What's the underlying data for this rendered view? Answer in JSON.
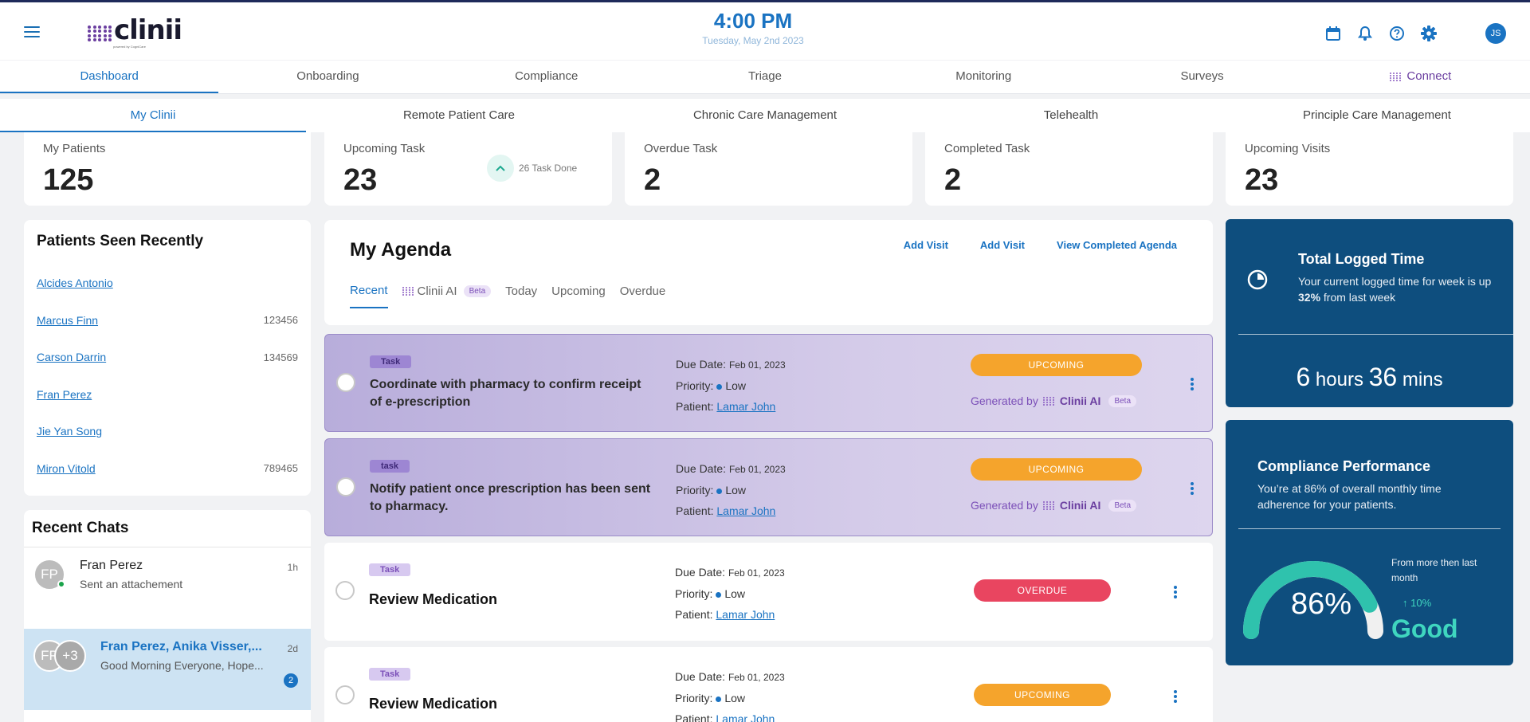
{
  "header": {
    "logo_text": "clinii",
    "logo_sub": "powered by CogniCare",
    "time": "4:00 PM",
    "date": "Tuesday, May 2nd 2023",
    "user_initials": "JS",
    "icons": [
      "calendar-icon",
      "bell-icon",
      "help-icon",
      "gear-icon"
    ]
  },
  "main_nav": [
    "Dashboard",
    "Onboarding",
    "Compliance",
    "Triage",
    "Monitoring",
    "Surveys",
    "Connect"
  ],
  "sub_nav": [
    "My Clinii",
    "Remote Patient Care",
    "Chronic Care Management",
    "Telehealth",
    "Principle Care Management"
  ],
  "stats": {
    "patients": {
      "label": "My Patients",
      "value": "125"
    },
    "upcoming": {
      "label": "Upcoming Task",
      "value": "23",
      "done": "26 Task Done"
    },
    "overdue": {
      "label": "Overdue Task",
      "value": "2"
    },
    "completed": {
      "label": "Completed Task",
      "value": "2"
    },
    "visits": {
      "label": "Upcoming Visits",
      "value": "23"
    }
  },
  "patients_seen": {
    "title": "Patients Seen Recently",
    "rows": [
      {
        "name": "Alcides Antonio",
        "id": ""
      },
      {
        "name": "Marcus Finn",
        "id": "123456"
      },
      {
        "name": "Carson Darrin",
        "id": "134569"
      },
      {
        "name": "Fran Perez",
        "id": ""
      },
      {
        "name": "Jie Yan Song",
        "id": ""
      },
      {
        "name": "Miron Vitold",
        "id": "789465"
      }
    ]
  },
  "chats": {
    "title": "Recent Chats",
    "items": [
      {
        "initials": "FP",
        "name": "Fran Perez",
        "preview": "Sent an attachement",
        "time": "1h"
      },
      {
        "initials": "FP",
        "initials2": "+3",
        "name": "Fran Perez, Anika Visser,...",
        "preview": "Good Morning Everyone, Hope...",
        "time": "2d",
        "badge": "2"
      }
    ]
  },
  "agenda": {
    "title": "My Agenda",
    "links": [
      "Add Visit",
      "Add Visit",
      "View Completed Agenda"
    ],
    "tabs": [
      "Recent",
      "Clinii AI",
      "Today",
      "Upcoming",
      "Overdue"
    ],
    "beta": "Beta",
    "labels": {
      "due": "Due Date:",
      "priority": "Priority:",
      "patient": "Patient:",
      "generated": "Generated by",
      "ai": "Clinii AI"
    },
    "tasks": [
      {
        "chip": "Task",
        "title": "Coordinate with pharmacy to confirm receipt of e-prescription",
        "due": "Feb 01, 2023",
        "priority": "Low",
        "patient": "Lamar John",
        "status": "UPCOMING"
      },
      {
        "chip": "task",
        "title": "Notify patient once prescription has been sent to pharmacy.",
        "due": "Feb 01, 2023",
        "priority": "Low",
        "patient": "Lamar John",
        "status": "UPCOMING"
      },
      {
        "chip": "Task",
        "title": "Review Medication",
        "due": "Feb 01, 2023",
        "priority": "Low",
        "patient": "Lamar John",
        "status": "OVERDUE"
      },
      {
        "chip": "Task",
        "title": "Review Medication",
        "due": "Feb 01, 2023",
        "priority": "Low",
        "patient": "Lamar John",
        "status": "UPCOMING"
      }
    ]
  },
  "logged_time": {
    "title": "Total Logged Time",
    "desc_pre": "Your current logged time for week is up ",
    "desc_pct": "32%",
    "desc_post": " from last week",
    "hours": "6",
    "hours_unit": "hours",
    "mins": "36",
    "mins_unit": "mins"
  },
  "compliance": {
    "title": "Compliance Performance",
    "desc": "You’re at 86% of overall monthly time adherence for your patients.",
    "value": "86%",
    "fraction": 0.86,
    "from": "From more then last month",
    "change": "↑ 10%",
    "rating": "Good"
  },
  "colors": {
    "brand_blue": "#1a73c2",
    "panel_navy": "#0e4e7e",
    "upcoming": "#f5a42c",
    "overdue": "#e94560",
    "accent_teal": "#3fd6bf",
    "ai_purple": "#7b4fb8"
  }
}
